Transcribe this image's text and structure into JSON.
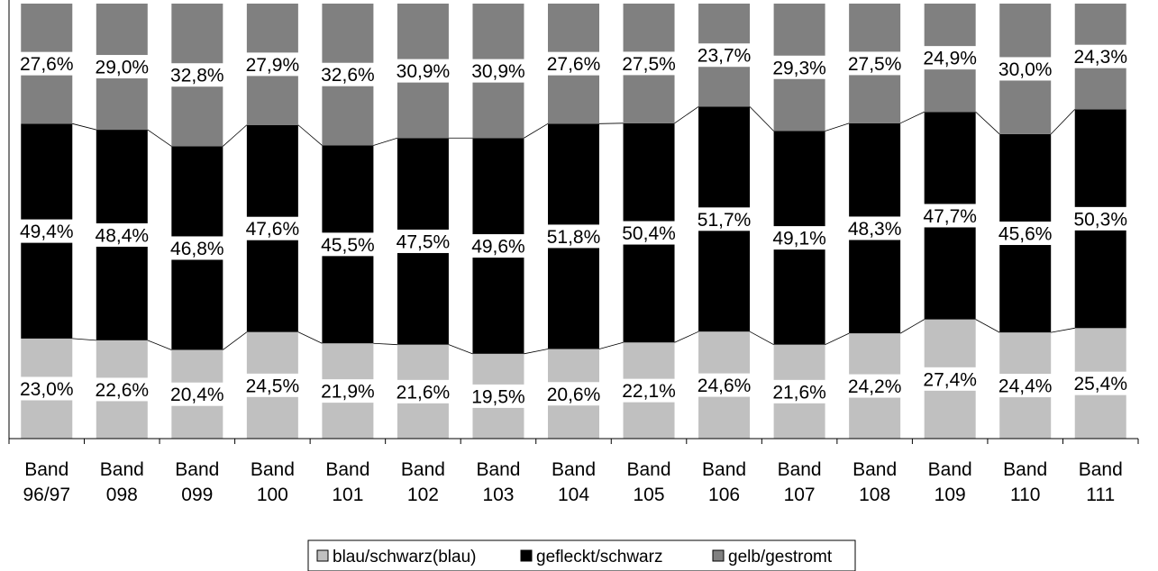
{
  "chart_data": {
    "type": "bar",
    "stacked": true,
    "percent_stacked": true,
    "categories": [
      [
        "Band",
        "96/97"
      ],
      [
        "Band",
        "098"
      ],
      [
        "Band",
        "099"
      ],
      [
        "Band",
        "100"
      ],
      [
        "Band",
        "101"
      ],
      [
        "Band",
        "102"
      ],
      [
        "Band",
        "103"
      ],
      [
        "Band",
        "104"
      ],
      [
        "Band",
        "105"
      ],
      [
        "Band",
        "106"
      ],
      [
        "Band",
        "107"
      ],
      [
        "Band",
        "108"
      ],
      [
        "Band",
        "109"
      ],
      [
        "Band",
        "110"
      ],
      [
        "Band",
        "111"
      ]
    ],
    "series": [
      {
        "name": "blau/schwarz(blau)",
        "color": "#c0c0c0",
        "values": [
          23.0,
          22.6,
          20.4,
          24.5,
          21.9,
          21.6,
          19.5,
          20.6,
          22.1,
          24.6,
          21.6,
          24.2,
          27.4,
          24.4,
          25.4
        ],
        "labels": [
          "23,0%",
          "22,6%",
          "20,4%",
          "24,5%",
          "21,9%",
          "21,6%",
          "19,5%",
          "20,6%",
          "22,1%",
          "24,6%",
          "21,6%",
          "24,2%",
          "27,4%",
          "24,4%",
          "25,4%"
        ]
      },
      {
        "name": "gefleckt/schwarz",
        "color": "#000000",
        "values": [
          49.4,
          48.4,
          46.8,
          47.6,
          45.5,
          47.5,
          49.6,
          51.8,
          50.4,
          51.7,
          49.1,
          48.3,
          47.7,
          45.6,
          50.3
        ],
        "labels": [
          "49,4%",
          "48,4%",
          "46,8%",
          "47,6%",
          "45,5%",
          "47,5%",
          "49,6%",
          "51,8%",
          "50,4%",
          "51,7%",
          "49,1%",
          "48,3%",
          "47,7%",
          "45,6%",
          "50,3%"
        ]
      },
      {
        "name": "gelb/gestromt",
        "color": "#808080",
        "values": [
          27.6,
          29.0,
          32.8,
          27.9,
          32.6,
          30.9,
          30.9,
          27.6,
          27.5,
          23.7,
          29.3,
          27.5,
          24.9,
          30.0,
          24.3
        ],
        "labels": [
          "27,6%",
          "29,0%",
          "32,8%",
          "27,9%",
          "32,6%",
          "30,9%",
          "30,9%",
          "27,6%",
          "27,5%",
          "23,7%",
          "29,3%",
          "27,5%",
          "24,9%",
          "30,0%",
          "24,3%"
        ]
      }
    ],
    "ylim": [
      0,
      100
    ],
    "series_lines": true,
    "legend_position": "bottom",
    "xlabel": "",
    "ylabel": "",
    "title": ""
  }
}
